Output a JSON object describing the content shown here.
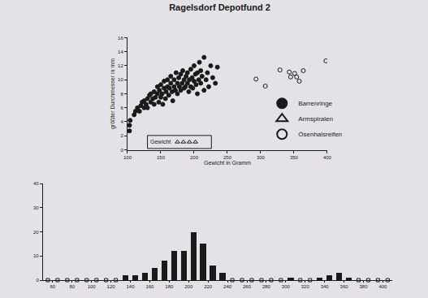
{
  "chart_data": [
    {
      "type": "scatter",
      "title": "Ragelsdorf Depotfund 2",
      "x_label": "Gewicht in Gramm",
      "y_label": "größter Durchmesser in mm",
      "xlim": [
        100,
        400
      ],
      "xticks": [
        100,
        150,
        200,
        250,
        300,
        350,
        400
      ],
      "ylim": [
        0,
        16
      ],
      "yticks": [
        0,
        2,
        4,
        6,
        8,
        10,
        12,
        14,
        16
      ],
      "legend": "right",
      "series": [
        {
          "name": "Barrenringe",
          "marker": "circle",
          "color": "#1a1a1a",
          "x": [
            103,
            103,
            104,
            110,
            112,
            115,
            118,
            120,
            122,
            125,
            125,
            128,
            130,
            130,
            133,
            135,
            135,
            138,
            140,
            140,
            142,
            145,
            145,
            147,
            148,
            150,
            150,
            152,
            153,
            155,
            155,
            157,
            158,
            160,
            160,
            162,
            163,
            165,
            165,
            167,
            168,
            170,
            170,
            172,
            173,
            175,
            175,
            177,
            178,
            180,
            180,
            182,
            183,
            185,
            185,
            187,
            188,
            190,
            190,
            192,
            193,
            195,
            195,
            197,
            198,
            200,
            200,
            202,
            203,
            205,
            205,
            207,
            208,
            210,
            210,
            212,
            215,
            215,
            218,
            220,
            222,
            225,
            228,
            232,
            235
          ],
          "y": [
            2.7,
            3.5,
            4.2,
            5.0,
            5.5,
            6.0,
            5.5,
            6.3,
            6.8,
            6.0,
            7.0,
            6.5,
            7.3,
            6.0,
            7.8,
            6.8,
            8.0,
            7.3,
            6.5,
            8.3,
            7.5,
            8.0,
            9.0,
            6.8,
            8.5,
            7.5,
            9.3,
            8.0,
            6.5,
            8.8,
            9.8,
            7.3,
            8.3,
            9.0,
            10.0,
            7.8,
            8.8,
            9.5,
            10.5,
            8.3,
            7.0,
            9.0,
            10.0,
            8.5,
            11.0,
            9.5,
            8.0,
            10.3,
            9.0,
            10.8,
            8.5,
            9.5,
            11.3,
            10.0,
            8.8,
            9.0,
            10.5,
            9.5,
            11.0,
            8.3,
            10.0,
            9.0,
            11.5,
            10.3,
            8.8,
            9.8,
            12.0,
            10.8,
            9.3,
            11.0,
            8.0,
            10.0,
            12.5,
            9.5,
            11.3,
            10.5,
            8.5,
            13.2,
            10.0,
            11.0,
            9.0,
            12.0,
            10.3,
            9.5,
            11.8
          ]
        },
        {
          "name": "Armspiralen",
          "marker": "triangle-up-open",
          "color": "#1a1a1a",
          "x": [
            175,
            184,
            193,
            202
          ],
          "y": [
            "Gewicht",
            "Gewicht",
            "Gewicht",
            "Gewicht"
          ]
        },
        {
          "name": "Ösenhalsreifen",
          "marker": "circle-open",
          "color": "#1a1a1a",
          "x": [
            293,
            307,
            329,
            343,
            345,
            351,
            354,
            358,
            364,
            398
          ],
          "y": [
            10.1,
            9.1,
            11.4,
            11.1,
            10.4,
            10.9,
            10.4,
            9.8,
            11.3,
            12.7
          ]
        }
      ]
    },
    {
      "type": "histogram",
      "bins": [
        50,
        60,
        70,
        80,
        90,
        100,
        110,
        120,
        130,
        140,
        150,
        160,
        170,
        180,
        190,
        200,
        210,
        220,
        230,
        240,
        250,
        260,
        270,
        280,
        290,
        300,
        310,
        320,
        330,
        340,
        350,
        360,
        370,
        380,
        390,
        400,
        410
      ],
      "values": [
        0,
        0,
        0,
        0,
        0,
        0,
        0,
        0,
        2,
        2,
        3,
        5,
        8,
        12,
        12,
        20,
        15,
        6,
        3,
        0,
        0,
        0,
        0,
        0,
        0,
        1,
        0,
        0,
        1,
        2,
        3,
        1,
        0,
        0,
        0,
        0
      ],
      "color": "#1a1a1a",
      "xlim": [
        50,
        410
      ],
      "xticks": [
        60,
        80,
        100,
        120,
        140,
        160,
        180,
        200,
        220,
        240,
        260,
        280,
        300,
        320,
        340,
        360,
        380,
        400
      ],
      "ylim": [
        0,
        40
      ],
      "yticks": [
        0,
        10,
        20,
        30,
        40
      ]
    }
  ]
}
